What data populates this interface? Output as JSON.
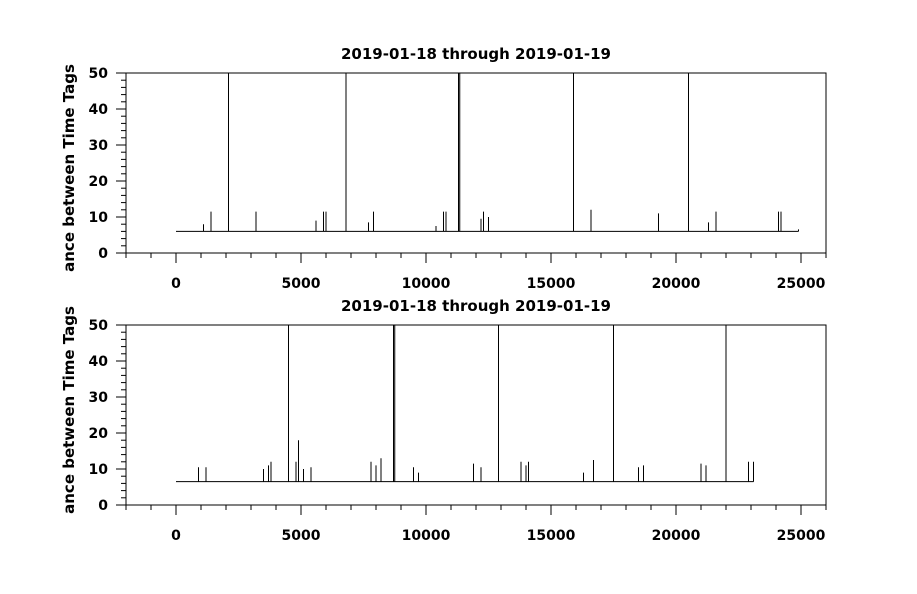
{
  "chart_data": [
    {
      "type": "line",
      "title": "2019-01-18 through 2019-01-19",
      "ylabel": "ance between Time Tags",
      "xlabel": "",
      "xlim": [
        -2000,
        26000
      ],
      "ylim": [
        0,
        50
      ],
      "x_ticks": [
        0,
        5000,
        10000,
        15000,
        20000,
        25000
      ],
      "x_tick_labels": [
        "0",
        "5000",
        "10000",
        "15000",
        "20000",
        "25000"
      ],
      "y_ticks": [
        0,
        10,
        20,
        30,
        40,
        50
      ],
      "y_tick_labels": [
        "0",
        "10",
        "20",
        "30",
        "40",
        "50"
      ],
      "grid": false,
      "series": [
        {
          "baseline": 6,
          "x_range": [
            0,
            24900
          ],
          "spikes": [
            {
              "x": 1100,
              "y": 8
            },
            {
              "x": 1400,
              "y": 11.5
            },
            {
              "x": 2100,
              "y": 50
            },
            {
              "x": 3200,
              "y": 11.5
            },
            {
              "x": 5600,
              "y": 9
            },
            {
              "x": 5900,
              "y": 11.5
            },
            {
              "x": 6000,
              "y": 11.5
            },
            {
              "x": 6800,
              "y": 50
            },
            {
              "x": 7700,
              "y": 8.5
            },
            {
              "x": 7900,
              "y": 11.5
            },
            {
              "x": 10400,
              "y": 7.5
            },
            {
              "x": 10700,
              "y": 11.5
            },
            {
              "x": 10800,
              "y": 11.5
            },
            {
              "x": 11300,
              "y": 50
            },
            {
              "x": 11350,
              "y": 50
            },
            {
              "x": 12200,
              "y": 9.5
            },
            {
              "x": 12300,
              "y": 11.5
            },
            {
              "x": 12500,
              "y": 10
            },
            {
              "x": 15900,
              "y": 50
            },
            {
              "x": 16600,
              "y": 12
            },
            {
              "x": 19300,
              "y": 11
            },
            {
              "x": 20500,
              "y": 50
            },
            {
              "x": 21300,
              "y": 8.5
            },
            {
              "x": 21600,
              "y": 11.5
            },
            {
              "x": 24100,
              "y": 11.5
            },
            {
              "x": 24200,
              "y": 11.5
            }
          ]
        }
      ]
    },
    {
      "type": "line",
      "title": "2019-01-18 through 2019-01-19",
      "ylabel": "ance between Time Tags",
      "xlabel": "",
      "xlim": [
        -2000,
        26000
      ],
      "ylim": [
        0,
        50
      ],
      "x_ticks": [
        0,
        5000,
        10000,
        15000,
        20000,
        25000
      ],
      "x_tick_labels": [
        "0",
        "5000",
        "10000",
        "15000",
        "20000",
        "25000"
      ],
      "y_ticks": [
        0,
        10,
        20,
        30,
        40,
        50
      ],
      "y_tick_labels": [
        "0",
        "10",
        "20",
        "30",
        "40",
        "50"
      ],
      "grid": false,
      "series": [
        {
          "baseline": 6.5,
          "x_range": [
            0,
            23100
          ],
          "spikes": [
            {
              "x": 900,
              "y": 10.5
            },
            {
              "x": 1200,
              "y": 10.5
            },
            {
              "x": 3500,
              "y": 10
            },
            {
              "x": 3700,
              "y": 11
            },
            {
              "x": 3800,
              "y": 12
            },
            {
              "x": 4500,
              "y": 50
            },
            {
              "x": 4800,
              "y": 12
            },
            {
              "x": 4900,
              "y": 18
            },
            {
              "x": 5100,
              "y": 10
            },
            {
              "x": 5400,
              "y": 10.5
            },
            {
              "x": 7800,
              "y": 12
            },
            {
              "x": 8000,
              "y": 11
            },
            {
              "x": 8200,
              "y": 13
            },
            {
              "x": 8700,
              "y": 50
            },
            {
              "x": 8750,
              "y": 50
            },
            {
              "x": 9500,
              "y": 10.5
            },
            {
              "x": 9700,
              "y": 9
            },
            {
              "x": 11900,
              "y": 11.5
            },
            {
              "x": 12200,
              "y": 10.5
            },
            {
              "x": 12900,
              "y": 50
            },
            {
              "x": 13800,
              "y": 12
            },
            {
              "x": 14000,
              "y": 11
            },
            {
              "x": 14100,
              "y": 12
            },
            {
              "x": 16300,
              "y": 9
            },
            {
              "x": 16700,
              "y": 12.5
            },
            {
              "x": 17500,
              "y": 50
            },
            {
              "x": 18500,
              "y": 10.5
            },
            {
              "x": 18700,
              "y": 11
            },
            {
              "x": 21000,
              "y": 11.5
            },
            {
              "x": 21200,
              "y": 11
            },
            {
              "x": 22000,
              "y": 50
            },
            {
              "x": 22900,
              "y": 12
            },
            {
              "x": 23100,
              "y": 12
            }
          ]
        }
      ]
    }
  ]
}
